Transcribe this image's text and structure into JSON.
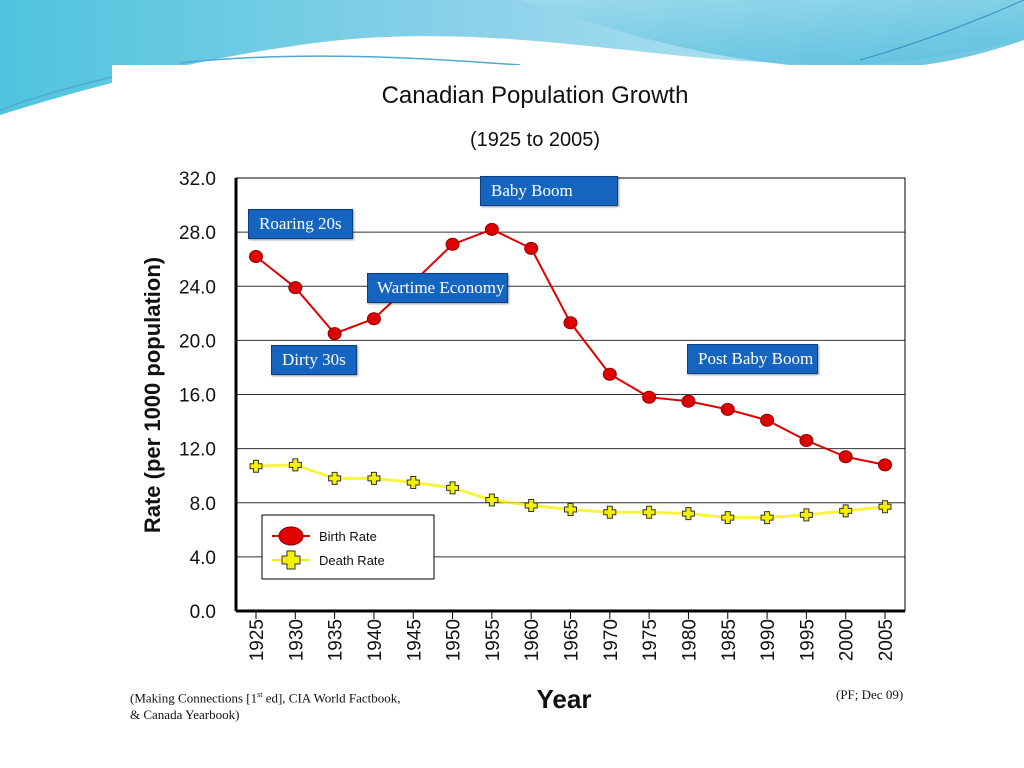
{
  "slide": {
    "source_left_line1_pre": "(Making Connections [1",
    "source_left_sup": "st",
    "source_left_line1_post": " ed], CIA World Factbook,",
    "source_left_line2": "& Canada Yearbook)",
    "source_right": "(PF; Dec 09)"
  },
  "annotations": [
    {
      "id": "roaring-20s",
      "label": "Roaring 20s"
    },
    {
      "id": "dirty-30s",
      "label": "Dirty 30s"
    },
    {
      "id": "wartime-economy",
      "label": "Wartime Economy"
    },
    {
      "id": "baby-boom",
      "label": "Baby Boom"
    },
    {
      "id": "post-baby-boom",
      "label": "Post Baby Boom"
    }
  ],
  "chart_data": {
    "type": "line",
    "title": "Canadian Population Growth",
    "subtitle": "(1925 to 2005)",
    "xlabel": "Year",
    "ylabel": "Rate (per 1000 population)",
    "ylim": [
      0,
      32
    ],
    "yticks": [
      "0.0",
      "4.0",
      "8.0",
      "12.0",
      "16.0",
      "20.0",
      "24.0",
      "28.0",
      "32.0"
    ],
    "ytick_values": [
      0,
      4,
      8,
      12,
      16,
      20,
      24,
      28,
      32
    ],
    "x": [
      "1925",
      "1930",
      "1935",
      "1940",
      "1945",
      "1950",
      "1955",
      "1960",
      "1965",
      "1970",
      "1975",
      "1980",
      "1985",
      "1990",
      "1995",
      "2000",
      "2005"
    ],
    "grid": "horizontal",
    "legend_position": "bottom-left",
    "series": [
      {
        "name": "Birth Rate",
        "color": "#e00000",
        "marker": "circle",
        "values": [
          26.2,
          23.9,
          20.5,
          21.6,
          24.3,
          27.1,
          28.2,
          26.8,
          21.3,
          17.5,
          15.8,
          15.5,
          14.9,
          14.1,
          12.6,
          11.4,
          10.8
        ]
      },
      {
        "name": "Death Rate",
        "color": "#f5f000",
        "marker": "cross",
        "values": [
          10.7,
          10.8,
          9.8,
          9.8,
          9.5,
          9.1,
          8.2,
          7.8,
          7.5,
          7.3,
          7.3,
          7.2,
          6.9,
          6.9,
          7.1,
          7.4,
          7.7
        ]
      }
    ]
  }
}
